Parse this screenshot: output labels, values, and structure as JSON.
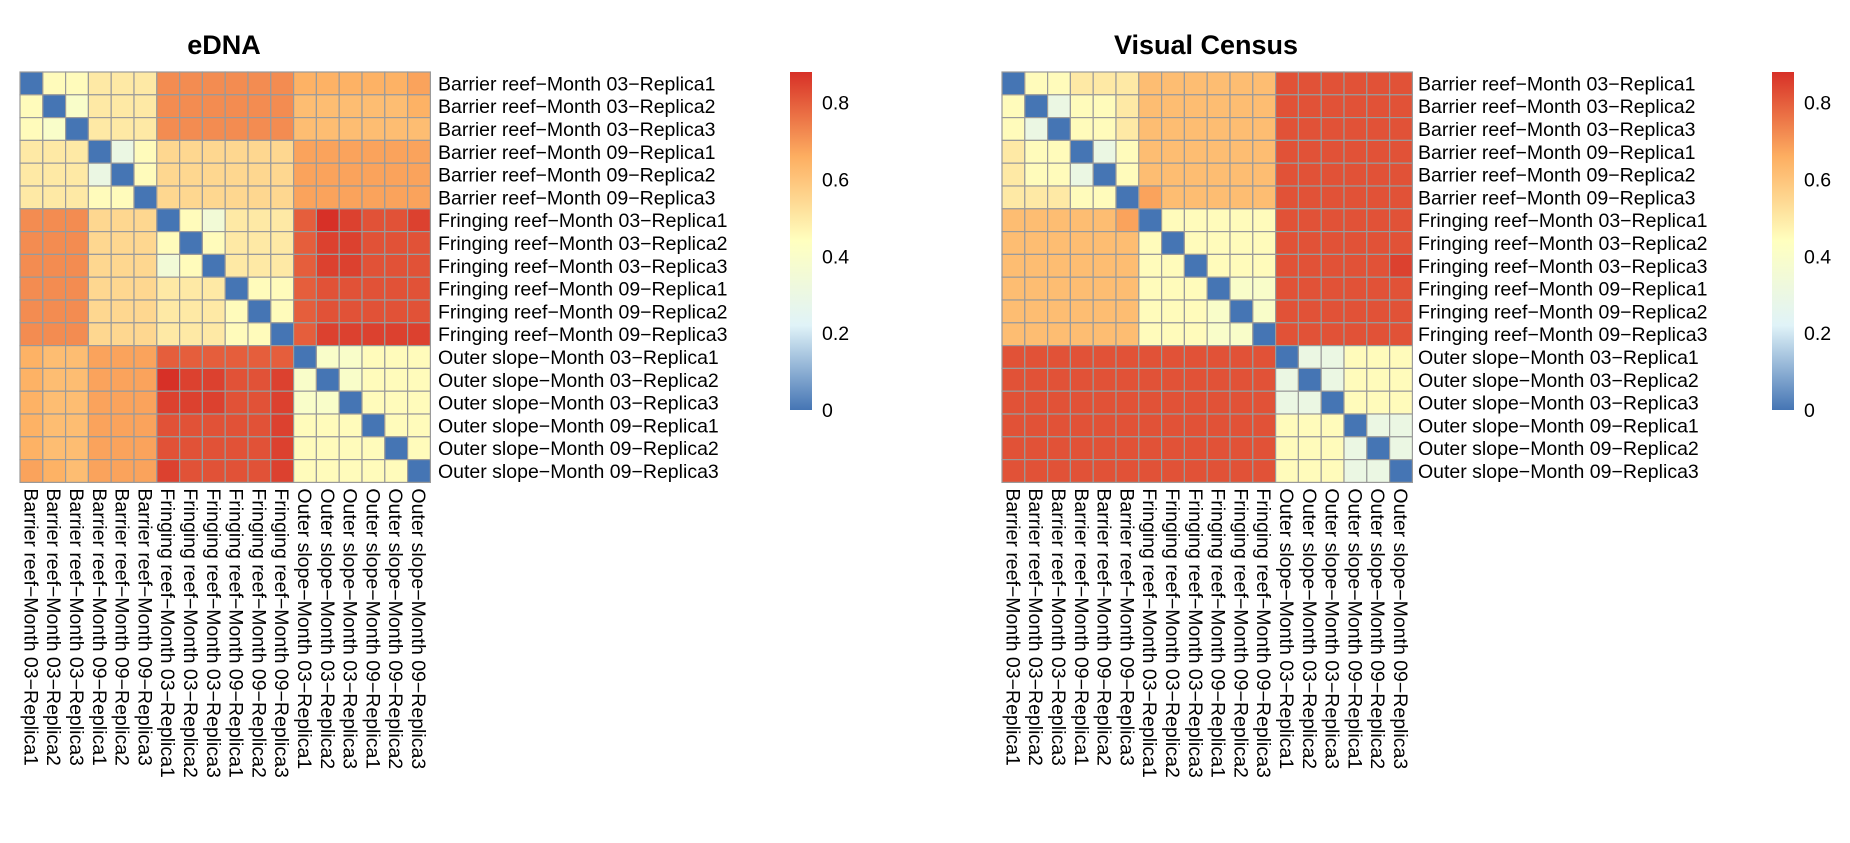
{
  "chart_data": [
    {
      "type": "heatmap",
      "title": "eDNA",
      "xlabel": "",
      "ylabel": "",
      "labels": [
        "Barrier reef−Month 03−Replica1",
        "Barrier reef−Month 03−Replica2",
        "Barrier reef−Month 03−Replica3",
        "Barrier reef−Month 09−Replica1",
        "Barrier reef−Month 09−Replica2",
        "Barrier reef−Month 09−Replica3",
        "Fringing reef−Month 03−Replica1",
        "Fringing reef−Month 03−Replica2",
        "Fringing reef−Month 03−Replica3",
        "Fringing reef−Month 09−Replica1",
        "Fringing reef−Month 09−Replica2",
        "Fringing reef−Month 09−Replica3",
        "Outer slope−Month 03−Replica1",
        "Outer slope−Month 03−Replica2",
        "Outer slope−Month 03−Replica3",
        "Outer slope−Month 09−Replica1",
        "Outer slope−Month 09−Replica2",
        "Outer slope−Month 09−Replica3"
      ],
      "matrix": [
        [
          0.0,
          0.45,
          0.45,
          0.5,
          0.5,
          0.5,
          0.72,
          0.72,
          0.72,
          0.72,
          0.72,
          0.72,
          0.65,
          0.65,
          0.65,
          0.65,
          0.65,
          0.68
        ],
        [
          0.45,
          0.0,
          0.4,
          0.5,
          0.5,
          0.5,
          0.72,
          0.72,
          0.72,
          0.72,
          0.72,
          0.72,
          0.62,
          0.62,
          0.62,
          0.62,
          0.62,
          0.65
        ],
        [
          0.45,
          0.4,
          0.0,
          0.5,
          0.5,
          0.5,
          0.72,
          0.72,
          0.72,
          0.72,
          0.72,
          0.72,
          0.62,
          0.62,
          0.62,
          0.62,
          0.62,
          0.62
        ],
        [
          0.5,
          0.5,
          0.5,
          0.0,
          0.3,
          0.45,
          0.55,
          0.55,
          0.55,
          0.55,
          0.55,
          0.55,
          0.68,
          0.68,
          0.68,
          0.68,
          0.68,
          0.68
        ],
        [
          0.5,
          0.5,
          0.5,
          0.3,
          0.0,
          0.45,
          0.55,
          0.55,
          0.55,
          0.55,
          0.55,
          0.55,
          0.68,
          0.68,
          0.68,
          0.68,
          0.68,
          0.68
        ],
        [
          0.5,
          0.5,
          0.5,
          0.45,
          0.45,
          0.0,
          0.55,
          0.55,
          0.55,
          0.55,
          0.55,
          0.55,
          0.68,
          0.68,
          0.68,
          0.68,
          0.68,
          0.68
        ],
        [
          0.72,
          0.72,
          0.72,
          0.55,
          0.55,
          0.55,
          0.0,
          0.45,
          0.35,
          0.5,
          0.5,
          0.5,
          0.8,
          0.88,
          0.85,
          0.82,
          0.82,
          0.85
        ],
        [
          0.72,
          0.72,
          0.72,
          0.55,
          0.55,
          0.55,
          0.45,
          0.0,
          0.45,
          0.5,
          0.5,
          0.5,
          0.8,
          0.85,
          0.85,
          0.82,
          0.82,
          0.82
        ],
        [
          0.72,
          0.72,
          0.72,
          0.55,
          0.55,
          0.55,
          0.35,
          0.45,
          0.0,
          0.5,
          0.5,
          0.5,
          0.8,
          0.85,
          0.85,
          0.82,
          0.82,
          0.82
        ],
        [
          0.72,
          0.72,
          0.72,
          0.55,
          0.55,
          0.55,
          0.5,
          0.5,
          0.5,
          0.0,
          0.45,
          0.45,
          0.8,
          0.82,
          0.82,
          0.82,
          0.82,
          0.82
        ],
        [
          0.72,
          0.72,
          0.72,
          0.55,
          0.55,
          0.55,
          0.5,
          0.5,
          0.5,
          0.45,
          0.0,
          0.45,
          0.8,
          0.82,
          0.82,
          0.82,
          0.82,
          0.82
        ],
        [
          0.72,
          0.72,
          0.72,
          0.55,
          0.55,
          0.55,
          0.5,
          0.5,
          0.5,
          0.45,
          0.45,
          0.0,
          0.8,
          0.85,
          0.85,
          0.85,
          0.85,
          0.85
        ],
        [
          0.65,
          0.62,
          0.62,
          0.68,
          0.68,
          0.68,
          0.8,
          0.8,
          0.8,
          0.8,
          0.8,
          0.8,
          0.0,
          0.4,
          0.4,
          0.45,
          0.45,
          0.45
        ],
        [
          0.65,
          0.62,
          0.62,
          0.68,
          0.68,
          0.68,
          0.88,
          0.85,
          0.85,
          0.82,
          0.82,
          0.85,
          0.4,
          0.0,
          0.4,
          0.45,
          0.45,
          0.45
        ],
        [
          0.65,
          0.62,
          0.62,
          0.68,
          0.68,
          0.68,
          0.85,
          0.85,
          0.85,
          0.82,
          0.82,
          0.85,
          0.4,
          0.4,
          0.0,
          0.45,
          0.45,
          0.45
        ],
        [
          0.65,
          0.62,
          0.62,
          0.68,
          0.68,
          0.68,
          0.82,
          0.82,
          0.82,
          0.82,
          0.82,
          0.85,
          0.45,
          0.45,
          0.45,
          0.0,
          0.45,
          0.45
        ],
        [
          0.65,
          0.62,
          0.62,
          0.68,
          0.68,
          0.68,
          0.82,
          0.82,
          0.82,
          0.82,
          0.82,
          0.85,
          0.45,
          0.45,
          0.45,
          0.45,
          0.0,
          0.45
        ],
        [
          0.68,
          0.65,
          0.62,
          0.68,
          0.68,
          0.68,
          0.85,
          0.82,
          0.82,
          0.82,
          0.82,
          0.85,
          0.45,
          0.45,
          0.45,
          0.45,
          0.45,
          0.0
        ]
      ],
      "color_scale": {
        "min": 0,
        "max": 0.88,
        "ticks": [
          0,
          0.2,
          0.4,
          0.6,
          0.8
        ],
        "colors": [
          "#4575b4",
          "#e0f3f8",
          "#ffffbf",
          "#fdae61",
          "#d73027"
        ]
      },
      "legend": "right",
      "grid": true
    },
    {
      "type": "heatmap",
      "title": "Visual Census",
      "xlabel": "",
      "ylabel": "",
      "labels": [
        "Barrier reef−Month 03−Replica1",
        "Barrier reef−Month 03−Replica2",
        "Barrier reef−Month 03−Replica3",
        "Barrier reef−Month 09−Replica1",
        "Barrier reef−Month 09−Replica2",
        "Barrier reef−Month 09−Replica3",
        "Fringing reef−Month 03−Replica1",
        "Fringing reef−Month 03−Replica2",
        "Fringing reef−Month 03−Replica3",
        "Fringing reef−Month 09−Replica1",
        "Fringing reef−Month 09−Replica2",
        "Fringing reef−Month 09−Replica3",
        "Outer slope−Month 03−Replica1",
        "Outer slope−Month 03−Replica2",
        "Outer slope−Month 03−Replica3",
        "Outer slope−Month 09−Replica1",
        "Outer slope−Month 09−Replica2",
        "Outer slope−Month 09−Replica3"
      ],
      "matrix": [
        [
          0.0,
          0.45,
          0.45,
          0.5,
          0.5,
          0.5,
          0.62,
          0.62,
          0.62,
          0.62,
          0.62,
          0.62,
          0.82,
          0.82,
          0.82,
          0.82,
          0.82,
          0.82
        ],
        [
          0.45,
          0.0,
          0.3,
          0.45,
          0.45,
          0.5,
          0.62,
          0.62,
          0.62,
          0.62,
          0.62,
          0.62,
          0.82,
          0.82,
          0.82,
          0.82,
          0.82,
          0.82
        ],
        [
          0.45,
          0.3,
          0.0,
          0.45,
          0.45,
          0.5,
          0.62,
          0.62,
          0.62,
          0.62,
          0.62,
          0.62,
          0.82,
          0.82,
          0.82,
          0.82,
          0.82,
          0.82
        ],
        [
          0.5,
          0.45,
          0.45,
          0.0,
          0.3,
          0.45,
          0.62,
          0.62,
          0.62,
          0.62,
          0.62,
          0.62,
          0.82,
          0.82,
          0.82,
          0.82,
          0.82,
          0.82
        ],
        [
          0.5,
          0.45,
          0.45,
          0.3,
          0.0,
          0.45,
          0.62,
          0.62,
          0.62,
          0.62,
          0.62,
          0.62,
          0.82,
          0.82,
          0.82,
          0.82,
          0.82,
          0.82
        ],
        [
          0.5,
          0.5,
          0.5,
          0.45,
          0.45,
          0.0,
          0.68,
          0.62,
          0.62,
          0.62,
          0.62,
          0.62,
          0.82,
          0.82,
          0.82,
          0.82,
          0.82,
          0.82
        ],
        [
          0.62,
          0.62,
          0.62,
          0.62,
          0.62,
          0.68,
          0.0,
          0.45,
          0.45,
          0.45,
          0.45,
          0.45,
          0.82,
          0.82,
          0.82,
          0.82,
          0.82,
          0.82
        ],
        [
          0.62,
          0.62,
          0.62,
          0.62,
          0.62,
          0.62,
          0.45,
          0.0,
          0.45,
          0.45,
          0.45,
          0.45,
          0.82,
          0.82,
          0.82,
          0.82,
          0.82,
          0.82
        ],
        [
          0.62,
          0.62,
          0.62,
          0.62,
          0.62,
          0.62,
          0.45,
          0.45,
          0.0,
          0.45,
          0.45,
          0.45,
          0.82,
          0.82,
          0.82,
          0.82,
          0.82,
          0.85
        ],
        [
          0.62,
          0.62,
          0.62,
          0.62,
          0.62,
          0.62,
          0.45,
          0.45,
          0.45,
          0.0,
          0.4,
          0.4,
          0.82,
          0.82,
          0.82,
          0.82,
          0.82,
          0.82
        ],
        [
          0.62,
          0.62,
          0.62,
          0.62,
          0.62,
          0.62,
          0.45,
          0.45,
          0.45,
          0.4,
          0.0,
          0.4,
          0.82,
          0.82,
          0.82,
          0.82,
          0.82,
          0.82
        ],
        [
          0.62,
          0.62,
          0.62,
          0.62,
          0.62,
          0.62,
          0.45,
          0.45,
          0.45,
          0.4,
          0.4,
          0.0,
          0.82,
          0.82,
          0.82,
          0.82,
          0.82,
          0.82
        ],
        [
          0.82,
          0.82,
          0.82,
          0.82,
          0.82,
          0.82,
          0.82,
          0.82,
          0.82,
          0.82,
          0.82,
          0.82,
          0.0,
          0.3,
          0.3,
          0.45,
          0.45,
          0.45
        ],
        [
          0.82,
          0.82,
          0.82,
          0.82,
          0.82,
          0.82,
          0.82,
          0.82,
          0.82,
          0.82,
          0.82,
          0.82,
          0.3,
          0.0,
          0.3,
          0.45,
          0.45,
          0.45
        ],
        [
          0.82,
          0.82,
          0.82,
          0.82,
          0.82,
          0.82,
          0.82,
          0.82,
          0.82,
          0.82,
          0.82,
          0.82,
          0.3,
          0.3,
          0.0,
          0.45,
          0.45,
          0.45
        ],
        [
          0.82,
          0.82,
          0.82,
          0.82,
          0.82,
          0.82,
          0.82,
          0.82,
          0.82,
          0.82,
          0.82,
          0.82,
          0.45,
          0.45,
          0.45,
          0.0,
          0.3,
          0.3
        ],
        [
          0.82,
          0.82,
          0.82,
          0.82,
          0.82,
          0.82,
          0.82,
          0.82,
          0.82,
          0.82,
          0.82,
          0.82,
          0.45,
          0.45,
          0.45,
          0.3,
          0.0,
          0.3
        ],
        [
          0.82,
          0.82,
          0.82,
          0.82,
          0.82,
          0.82,
          0.82,
          0.82,
          0.82,
          0.82,
          0.82,
          0.82,
          0.45,
          0.45,
          0.45,
          0.3,
          0.3,
          0.0
        ]
      ],
      "color_scale": {
        "min": 0,
        "max": 0.88,
        "ticks": [
          0,
          0.2,
          0.4,
          0.6,
          0.8
        ],
        "colors": [
          "#4575b4",
          "#e0f3f8",
          "#ffffbf",
          "#fdae61",
          "#d73027"
        ]
      },
      "legend": "right",
      "grid": true
    }
  ]
}
